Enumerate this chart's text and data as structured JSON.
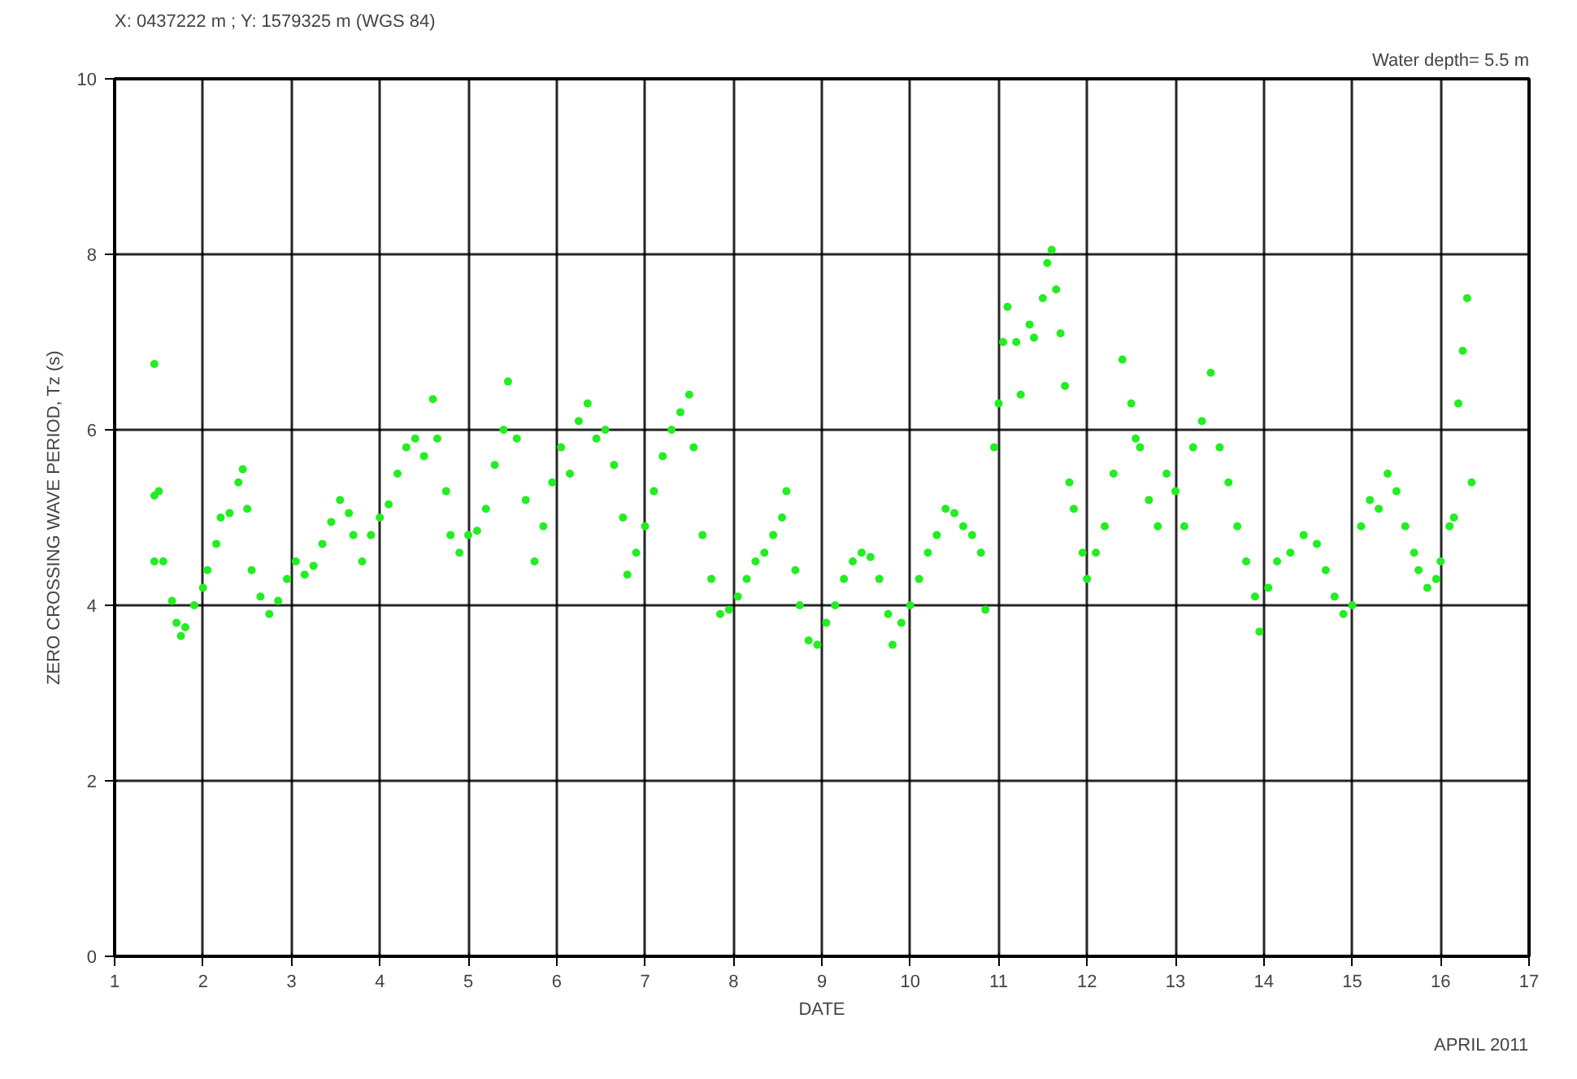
{
  "chart_data": {
    "type": "scatter",
    "title": "X: 0437222 m ; Y: 1579325 m (WGS 84)",
    "xlabel": "DATE",
    "ylabel": "ZERO CROSSING WAVE PERIOD, Tz (s)",
    "annotations": [
      "Water depth= 5.5 m",
      "APRIL 2011"
    ],
    "xlim": [
      1,
      17
    ],
    "ylim": [
      0,
      10
    ],
    "xticks": [
      1,
      2,
      3,
      4,
      5,
      6,
      7,
      8,
      9,
      10,
      11,
      12,
      13,
      14,
      15,
      16,
      17
    ],
    "yticks": [
      0,
      2,
      4,
      6,
      8,
      10
    ],
    "grid": true,
    "marker": "circle",
    "series": [
      {
        "color": "#22ee22",
        "x": [
          1.45,
          1.45,
          1.5,
          1.45,
          1.55,
          1.65,
          1.7,
          1.75,
          1.8,
          1.9,
          2.0,
          2.05,
          2.15,
          2.2,
          2.3,
          2.4,
          2.45,
          2.5,
          2.55,
          2.65,
          2.75,
          2.85,
          2.95,
          3.05,
          3.15,
          3.25,
          3.35,
          3.45,
          3.55,
          3.65,
          3.7,
          3.8,
          3.9,
          4.0,
          4.1,
          4.2,
          4.3,
          4.4,
          4.5,
          4.6,
          4.65,
          4.75,
          4.8,
          4.9,
          5.0,
          5.1,
          5.2,
          5.3,
          5.4,
          5.45,
          5.55,
          5.65,
          5.75,
          5.85,
          5.95,
          6.05,
          6.15,
          6.25,
          6.35,
          6.45,
          6.55,
          6.65,
          6.75,
          6.8,
          6.9,
          7.0,
          7.1,
          7.2,
          7.3,
          7.4,
          7.5,
          7.55,
          7.65,
          7.75,
          7.85,
          7.95,
          8.05,
          8.15,
          8.25,
          8.35,
          8.45,
          8.55,
          8.6,
          8.7,
          8.75,
          8.85,
          8.95,
          9.05,
          9.15,
          9.25,
          9.35,
          9.45,
          9.55,
          9.65,
          9.75,
          9.8,
          9.9,
          10.0,
          10.1,
          10.2,
          10.3,
          10.4,
          10.5,
          10.6,
          10.7,
          10.8,
          10.85,
          10.95,
          11.0,
          11.05,
          11.1,
          11.2,
          11.25,
          11.35,
          11.4,
          11.5,
          11.55,
          11.6,
          11.65,
          11.7,
          11.75,
          11.8,
          11.85,
          11.95,
          12.0,
          12.1,
          12.2,
          12.3,
          12.4,
          12.5,
          12.55,
          12.6,
          12.7,
          12.8,
          12.9,
          13.0,
          13.1,
          13.2,
          13.3,
          13.4,
          13.5,
          13.6,
          13.7,
          13.8,
          13.9,
          13.95,
          14.05,
          14.15,
          14.3,
          14.45,
          14.6,
          14.7,
          14.8,
          14.9,
          15.0,
          15.1,
          15.2,
          15.3,
          15.4,
          15.5,
          15.6,
          15.7,
          15.75,
          15.85,
          15.95,
          16.0,
          16.1,
          16.15,
          16.2,
          16.25,
          16.3,
          16.35
        ],
        "values": [
          6.75,
          5.25,
          5.3,
          4.5,
          4.5,
          4.05,
          3.8,
          3.65,
          3.75,
          4.0,
          4.2,
          4.4,
          4.7,
          5.0,
          5.05,
          5.4,
          5.55,
          5.1,
          4.4,
          4.1,
          3.9,
          4.05,
          4.3,
          4.5,
          4.35,
          4.45,
          4.7,
          4.95,
          5.2,
          5.05,
          4.8,
          4.5,
          4.8,
          5.0,
          5.15,
          5.5,
          5.8,
          5.9,
          5.7,
          6.35,
          5.9,
          5.3,
          4.8,
          4.6,
          4.8,
          4.85,
          5.1,
          5.6,
          6.0,
          6.55,
          5.9,
          5.2,
          4.5,
          4.9,
          5.4,
          5.8,
          5.5,
          6.1,
          6.3,
          5.9,
          6.0,
          5.6,
          5.0,
          4.35,
          4.6,
          4.9,
          5.3,
          5.7,
          6.0,
          6.2,
          6.4,
          5.8,
          4.8,
          4.3,
          3.9,
          3.95,
          4.1,
          4.3,
          4.5,
          4.6,
          4.8,
          5.0,
          5.3,
          4.4,
          4.0,
          3.6,
          3.55,
          3.8,
          4.0,
          4.3,
          4.5,
          4.6,
          4.55,
          4.3,
          3.9,
          3.55,
          3.8,
          4.0,
          4.3,
          4.6,
          4.8,
          5.1,
          5.05,
          4.9,
          4.8,
          4.6,
          3.95,
          5.8,
          6.3,
          7.0,
          7.4,
          7.0,
          6.4,
          7.2,
          7.05,
          7.5,
          7.9,
          8.05,
          7.6,
          7.1,
          6.5,
          5.4,
          5.1,
          4.6,
          4.3,
          4.6,
          4.9,
          5.5,
          6.8,
          6.3,
          5.9,
          5.8,
          5.2,
          4.9,
          5.5,
          5.3,
          4.9,
          5.8,
          6.1,
          6.65,
          5.8,
          5.4,
          4.9,
          4.5,
          4.1,
          3.7,
          4.2,
          4.5,
          4.6,
          4.8,
          4.7,
          4.4,
          4.1,
          3.9,
          4.0,
          4.9,
          5.2,
          5.1,
          5.5,
          5.3,
          4.9,
          4.6,
          4.4,
          4.2,
          4.3,
          4.5,
          4.9,
          5.0,
          6.3,
          6.9,
          7.5,
          5.4
        ]
      }
    ]
  }
}
